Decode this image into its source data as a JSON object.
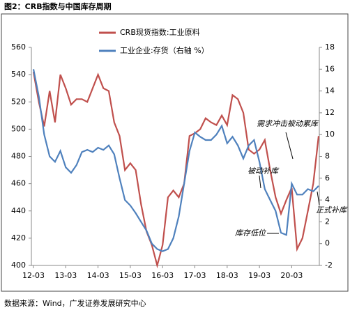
{
  "chart_data": {
    "type": "line",
    "title": "图2：CRB指数与中国库存周期",
    "source": "数据来源：Wind，广发证券发展研究中心",
    "categories": [
      "12-03",
      null,
      null,
      null,
      null,
      null,
      "13-03",
      null,
      null,
      null,
      null,
      null,
      "14-03",
      null,
      null,
      null,
      null,
      null,
      "15-03",
      null,
      null,
      null,
      null,
      null,
      "16-03",
      null,
      null,
      null,
      null,
      null,
      "17-03",
      null,
      null,
      null,
      null,
      null,
      "18-03",
      null,
      null,
      null,
      null,
      null,
      "19-03",
      null,
      null,
      null,
      null,
      null,
      "20-03",
      null,
      null,
      null,
      null,
      null
    ],
    "series": [
      {
        "name": "CRB现货指数:工业原料",
        "color": "#c0504d",
        "values": [
          542,
          520,
          502,
          528,
          505,
          540,
          530,
          518,
          522,
          522,
          520,
          530,
          540,
          530,
          528,
          505,
          495,
          470,
          475,
          470,
          445,
          425,
          415,
          400,
          415,
          450,
          455,
          450,
          460,
          495,
          497,
          500,
          508,
          505,
          503,
          510,
          503,
          525,
          522,
          512,
          485,
          482,
          485,
          492,
          470,
          450,
          438,
          448,
          457,
          412,
          420,
          440,
          460,
          495
        ]
      },
      {
        "name": "工业企业:存货（右轴 %）",
        "color": "#4f81bd",
        "axis": "y2",
        "values": [
          16,
          13.5,
          10,
          8,
          7.5,
          8.5,
          7,
          6.5,
          7.2,
          8.4,
          8.6,
          8.4,
          8.8,
          8.6,
          9,
          8.2,
          6,
          4,
          3.5,
          2.8,
          2,
          1.2,
          0,
          -0.5,
          -0.7,
          -0.5,
          0.5,
          2.5,
          5.5,
          8.5,
          10.2,
          9.8,
          9.5,
          9.5,
          10,
          10.8,
          9.2,
          9.8,
          9,
          7.8,
          9,
          9.5,
          7.5,
          5,
          4,
          3,
          1,
          0.8,
          5.5,
          4.5,
          4.5,
          5,
          4.8,
          5.3
        ]
      }
    ],
    "ylim": [
      400,
      560
    ],
    "yticks": [
      400,
      420,
      440,
      460,
      480,
      500,
      520,
      540,
      560
    ],
    "y2lim": [
      -2,
      18
    ],
    "y2ticks": [
      -2,
      0,
      2,
      4,
      6,
      8,
      10,
      12,
      14,
      16,
      18
    ],
    "grid": false,
    "legend": "top",
    "annotations": [
      "需求冲击被动累库",
      "被动补库",
      "库存低位",
      "正式补库"
    ]
  }
}
